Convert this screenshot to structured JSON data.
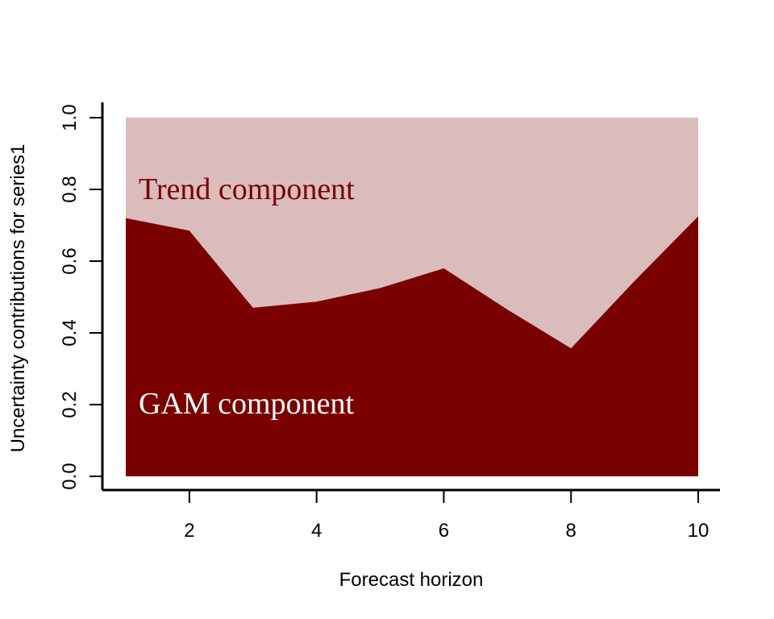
{
  "chart_data": {
    "type": "area",
    "xlabel": "Forecast horizon",
    "ylabel": "Uncertainty contributions for series1",
    "x": [
      1,
      2,
      3,
      4,
      5,
      6,
      7,
      8,
      9,
      10
    ],
    "xlim": [
      1,
      10
    ],
    "ylim": [
      0,
      1
    ],
    "x_ticks": [
      2,
      4,
      6,
      8,
      10
    ],
    "y_ticks": [
      "0.0",
      "0.2",
      "0.4",
      "0.6",
      "0.8",
      "1.0"
    ],
    "series": [
      {
        "name": "GAM component",
        "values": [
          0.72,
          0.685,
          0.47,
          0.487,
          0.525,
          0.58,
          0.465,
          0.357,
          0.545,
          0.725
        ],
        "color": "#7a0000",
        "label_color": "#ffffff"
      },
      {
        "name": "Trend component",
        "values": [
          0.28,
          0.315,
          0.53,
          0.513,
          0.475,
          0.42,
          0.535,
          0.643,
          0.455,
          0.275
        ],
        "color": "#dbbcbd",
        "label_color": "#7a0000"
      }
    ],
    "stacked": true,
    "grid": false,
    "legend": "none (labels drawn inside areas)"
  }
}
